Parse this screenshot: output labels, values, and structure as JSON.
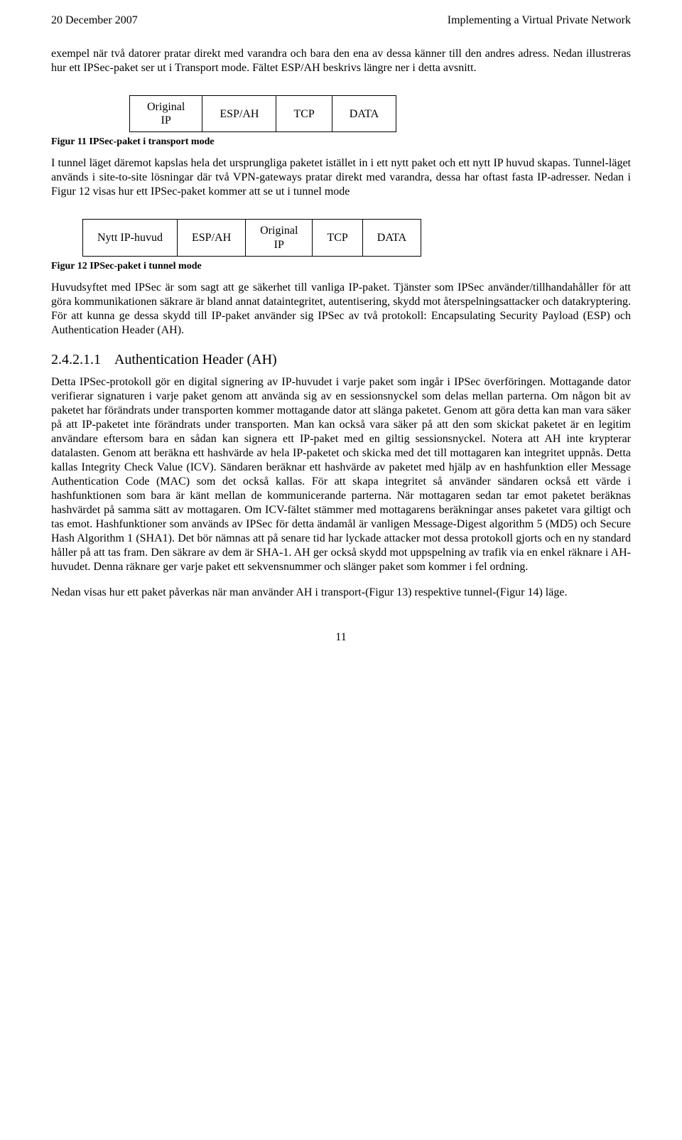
{
  "header": {
    "date": "20 December 2007",
    "title": "Implementing a Virtual Private Network"
  },
  "para1": "exempel när två datorer pratar direkt med varandra och bara den ena av dessa känner till den andres adress. Nedan illustreras hur ett IPSec-paket ser ut i Transport mode. Fältet ESP/AH beskrivs längre ner i detta avsnitt.",
  "fig11": {
    "cells": {
      "c1a": "Original",
      "c1b": "IP",
      "c2": "ESP/AH",
      "c3": "TCP",
      "c4": "DATA"
    },
    "caption": "Figur 11 IPSec-paket i transport mode"
  },
  "para2": "I tunnel läget däremot kapslas hela det ursprungliga paketet istället in i ett nytt paket och ett nytt IP huvud skapas. Tunnel-läget används i site-to-site lösningar där två VPN-gateways pratar direkt med varandra, dessa har oftast fasta IP-adresser. Nedan i Figur 12 visas hur ett IPSec-paket kommer att se ut i tunnel mode",
  "fig12": {
    "cells": {
      "c1": "Nytt IP-huvud",
      "c2": "ESP/AH",
      "c3a": "Original",
      "c3b": "IP",
      "c4": "TCP",
      "c5": "DATA"
    },
    "caption": "Figur 12 IPSec-paket i tunnel mode"
  },
  "para3": "Huvudsyftet med IPSec är som sagt att ge säkerhet till vanliga IP-paket. Tjänster som IPSec använder/tillhandahåller för att göra kommunikationen säkrare är bland annat dataintegritet, autentisering, skydd mot återspelningsattacker och datakryptering. För att kunna ge dessa skydd till IP-paket använder sig IPSec av två protokoll: Encapsulating Security Payload (ESP) och Authentication Header (AH).",
  "section": {
    "number": "2.4.2.1.1",
    "title": "Authentication Header (AH)"
  },
  "para4": "Detta IPSec-protokoll gör en digital signering av IP-huvudet i varje paket som ingår i IPSec överföringen. Mottagande dator verifierar signaturen i varje paket genom att använda sig av en sessionsnyckel som delas mellan parterna. Om någon bit av paketet har förändrats under transporten kommer mottagande dator att slänga paketet. Genom att göra detta kan man vara säker på att IP-paketet inte förändrats under transporten. Man kan också vara säker på att den som skickat paketet är en legitim användare eftersom bara en sådan kan signera ett IP-paket med en giltig sessionsnyckel. Notera att AH inte krypterar datalasten. Genom att beräkna ett hashvärde av hela IP-paketet och skicka med det till mottagaren kan integritet uppnås. Detta kallas Integrity Check Value (ICV). Sändaren beräknar ett hashvärde av paketet med hjälp av en hashfunktion eller Message Authentication Code (MAC) som det också kallas. För att skapa integritet så använder sändaren också ett värde i hashfunktionen som bara är känt mellan de kommunicerande parterna. När mottagaren sedan tar emot paketet beräknas hashvärdet på samma sätt av mottagaren. Om ICV-fältet stämmer med mottagarens beräkningar anses paketet vara giltigt och tas emot. Hashfunktioner som används av IPSec för detta ändamål är vanligen Message-Digest algorithm 5 (MD5) och Secure Hash Algorithm 1 (SHA1). Det bör nämnas att på senare tid har lyckade attacker mot dessa protokoll gjorts och en ny standard håller på att tas fram. Den säkrare av dem är SHA-1. AH ger också skydd mot uppspelning av trafik via en enkel räknare i AH-huvudet. Denna räknare ger varje paket ett sekvensnummer och slänger paket som kommer i fel ordning.",
  "para5": "Nedan visas hur ett paket påverkas när man använder AH i transport-(Figur 13) respektive tunnel-(Figur 14) läge.",
  "pageNumber": "11"
}
